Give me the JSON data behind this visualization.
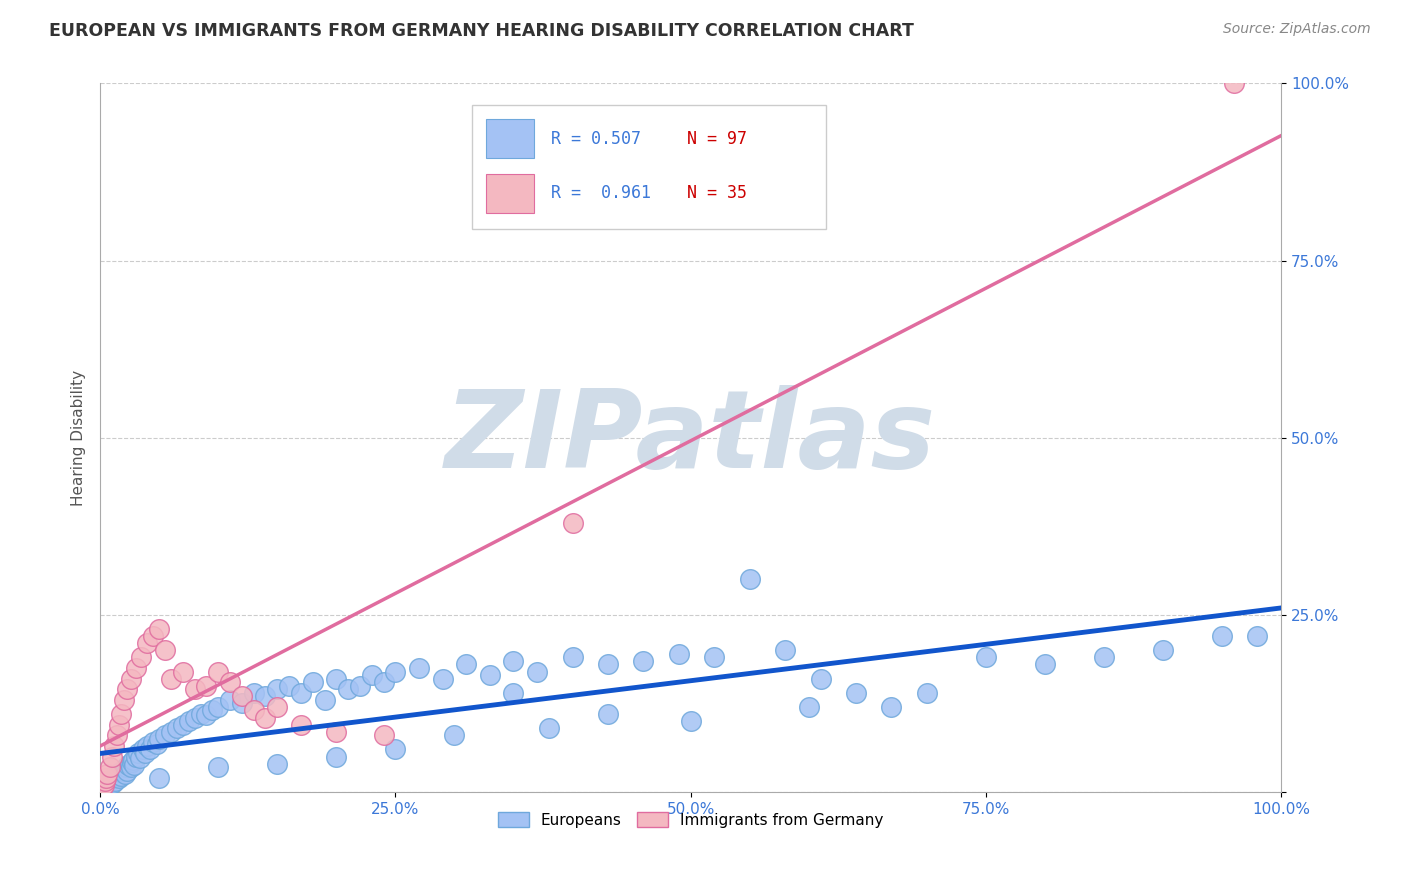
{
  "title": "EUROPEAN VS IMMIGRANTS FROM GERMANY HEARING DISABILITY CORRELATION CHART",
  "source": "Source: ZipAtlas.com",
  "ylabel": "Hearing Disability",
  "xlim": [
    0,
    100
  ],
  "ylim": [
    0,
    100
  ],
  "xticks": [
    0,
    25,
    50,
    75,
    100
  ],
  "yticks": [
    0,
    25,
    50,
    75,
    100
  ],
  "xtick_labels": [
    "0.0%",
    "25.0%",
    "50.0%",
    "75.0%",
    "100.0%"
  ],
  "ytick_labels": [
    "",
    "25.0%",
    "50.0%",
    "75.0%",
    "100.0%"
  ],
  "blue_R": "0.507",
  "blue_N": "97",
  "pink_R": "0.961",
  "pink_N": "35",
  "blue_color": "#a4c2f4",
  "pink_color": "#f4b8c1",
  "blue_edge_color": "#6fa8dc",
  "pink_edge_color": "#e06c9f",
  "blue_line_color": "#1155cc",
  "pink_line_color": "#e06c9f",
  "watermark_color": "#d0dce8",
  "background_color": "#ffffff",
  "grid_color": "#cccccc",
  "blue_x": [
    0.2,
    0.3,
    0.4,
    0.5,
    0.6,
    0.7,
    0.8,
    0.9,
    1.0,
    1.1,
    1.2,
    1.3,
    1.4,
    1.5,
    1.6,
    1.7,
    1.8,
    1.9,
    2.0,
    2.1,
    2.2,
    2.3,
    2.4,
    2.5,
    2.6,
    2.7,
    2.8,
    2.9,
    3.0,
    3.2,
    3.4,
    3.6,
    3.8,
    4.0,
    4.2,
    4.5,
    4.8,
    5.0,
    5.5,
    6.0,
    6.5,
    7.0,
    7.5,
    8.0,
    8.5,
    9.0,
    9.5,
    10.0,
    11.0,
    12.0,
    13.0,
    14.0,
    15.0,
    16.0,
    17.0,
    18.0,
    19.0,
    20.0,
    21.0,
    22.0,
    23.0,
    24.0,
    25.0,
    27.0,
    29.0,
    31.0,
    33.0,
    35.0,
    37.0,
    40.0,
    43.0,
    46.0,
    49.0,
    52.0,
    55.0,
    58.0,
    61.0,
    64.0,
    67.0,
    70.0,
    75.0,
    80.0,
    85.0,
    90.0,
    95.0,
    98.0,
    50.0,
    60.0,
    43.0,
    38.0,
    30.0,
    25.0,
    20.0,
    15.0,
    10.0,
    5.0,
    35.0
  ],
  "blue_y": [
    0.8,
    1.0,
    0.5,
    0.7,
    1.2,
    0.9,
    1.5,
    1.1,
    1.8,
    1.3,
    2.0,
    1.6,
    2.2,
    2.5,
    1.9,
    2.8,
    2.3,
    3.0,
    3.2,
    2.6,
    3.5,
    3.0,
    3.8,
    4.0,
    3.5,
    4.2,
    4.5,
    3.8,
    5.0,
    5.5,
    4.8,
    6.0,
    5.5,
    6.5,
    6.0,
    7.0,
    6.8,
    7.5,
    8.0,
    8.5,
    9.0,
    9.5,
    10.0,
    10.5,
    11.0,
    10.8,
    11.5,
    12.0,
    13.0,
    12.5,
    14.0,
    13.5,
    14.5,
    15.0,
    14.0,
    15.5,
    13.0,
    16.0,
    14.5,
    15.0,
    16.5,
    15.5,
    17.0,
    17.5,
    16.0,
    18.0,
    16.5,
    18.5,
    17.0,
    19.0,
    18.0,
    18.5,
    19.5,
    19.0,
    30.0,
    20.0,
    16.0,
    14.0,
    12.0,
    14.0,
    19.0,
    18.0,
    19.0,
    20.0,
    22.0,
    22.0,
    10.0,
    12.0,
    11.0,
    9.0,
    8.0,
    6.0,
    5.0,
    4.0,
    3.5,
    2.0,
    14.0
  ],
  "pink_x": [
    0.2,
    0.3,
    0.4,
    0.5,
    0.6,
    0.8,
    1.0,
    1.2,
    1.4,
    1.6,
    1.8,
    2.0,
    2.3,
    2.6,
    3.0,
    3.5,
    4.0,
    4.5,
    5.0,
    5.5,
    6.0,
    7.0,
    8.0,
    9.0,
    10.0,
    11.0,
    12.0,
    13.0,
    14.0,
    15.0,
    17.0,
    20.0,
    24.0,
    40.0,
    96.0
  ],
  "pink_y": [
    0.5,
    1.0,
    1.5,
    2.0,
    2.5,
    3.5,
    5.0,
    6.5,
    8.0,
    9.5,
    11.0,
    13.0,
    14.5,
    16.0,
    17.5,
    19.0,
    21.0,
    22.0,
    23.0,
    20.0,
    16.0,
    17.0,
    14.5,
    15.0,
    17.0,
    15.5,
    13.5,
    11.5,
    10.5,
    12.0,
    9.5,
    8.5,
    8.0,
    38.0,
    100.0
  ]
}
